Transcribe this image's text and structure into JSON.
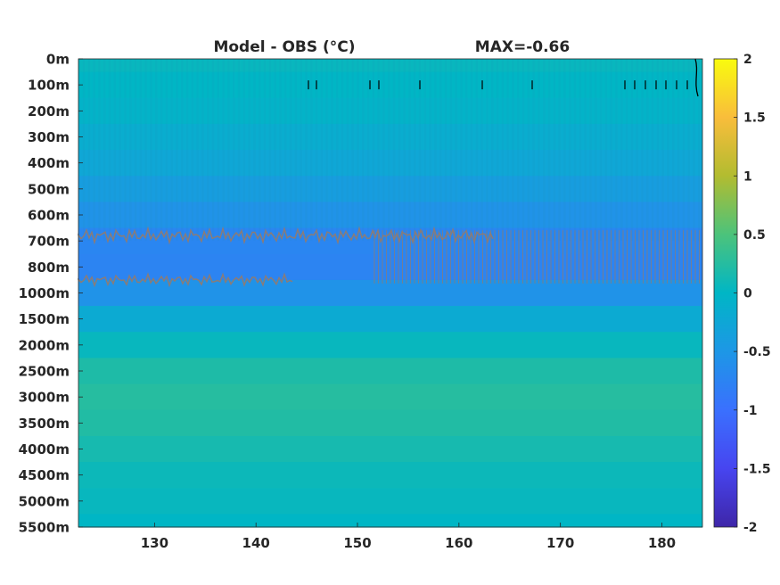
{
  "chart_data": {
    "type": "heatmap",
    "title": "Model - OBS (°C)",
    "annotation": "MAX=-0.66",
    "x_ticks": [
      "130",
      "140",
      "150",
      "160",
      "170",
      "180"
    ],
    "x_tick_values": [
      130,
      140,
      150,
      160,
      170,
      180
    ],
    "xlim": [
      122.5,
      184
    ],
    "y_ticks": [
      "0m",
      "100m",
      "200m",
      "300m",
      "400m",
      "500m",
      "600m",
      "700m",
      "800m",
      "1000m",
      "1500m",
      "2000m",
      "2500m",
      "3000m",
      "3500m",
      "4000m",
      "4500m",
      "5000m",
      "5500m"
    ],
    "colorbar": {
      "colormap": "parula",
      "ticks": [
        "-2",
        "-1.5",
        "-1",
        "-0.5",
        "0",
        "0.5",
        "1",
        "1.5",
        "2"
      ],
      "tick_values": [
        -2,
        -1.5,
        -1,
        -0.5,
        0,
        0.5,
        1,
        1.5,
        2
      ],
      "range": [
        -2,
        2
      ]
    },
    "depth_profile": [
      {
        "depth": "0m",
        "value": 0.05
      },
      {
        "depth": "100m",
        "value": 0.0
      },
      {
        "depth": "200m",
        "value": -0.05
      },
      {
        "depth": "300m",
        "value": -0.15
      },
      {
        "depth": "400m",
        "value": -0.25
      },
      {
        "depth": "500m",
        "value": -0.4
      },
      {
        "depth": "600m",
        "value": -0.55
      },
      {
        "depth": "700m",
        "value": -0.72
      },
      {
        "depth": "800m",
        "value": -0.75
      },
      {
        "depth": "1000m",
        "value": -0.55
      },
      {
        "depth": "1500m",
        "value": -0.2
      },
      {
        "depth": "2000m",
        "value": 0.05
      },
      {
        "depth": "2500m",
        "value": 0.2
      },
      {
        "depth": "3000m",
        "value": 0.25
      },
      {
        "depth": "3500m",
        "value": 0.22
      },
      {
        "depth": "4000m",
        "value": 0.15
      },
      {
        "depth": "4500m",
        "value": 0.08
      },
      {
        "depth": "5000m",
        "value": 0.05
      },
      {
        "depth": "5500m",
        "value": 0.0
      }
    ]
  }
}
